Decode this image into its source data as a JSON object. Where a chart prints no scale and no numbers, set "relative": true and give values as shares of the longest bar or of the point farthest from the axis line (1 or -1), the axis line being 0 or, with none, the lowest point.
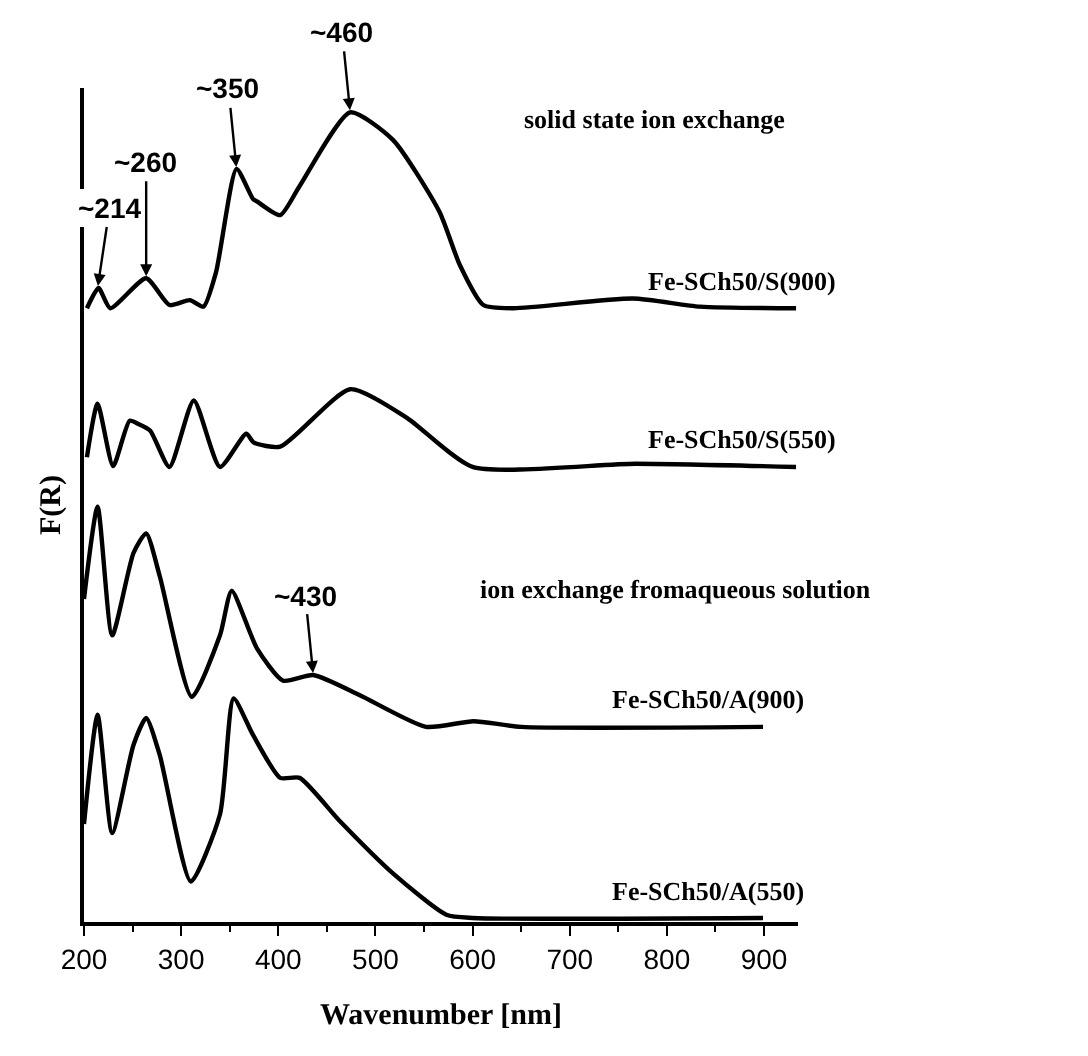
{
  "chart_data": {
    "type": "line",
    "relative": true,
    "xlabel": "Wavenumber [nm]",
    "ylabel": "F(R)",
    "xlim": [
      200,
      935
    ],
    "xticks": [
      200,
      300,
      400,
      500,
      600,
      700,
      800,
      900
    ],
    "legend": false,
    "marker": "none",
    "line_style": "solid",
    "annotations": [
      "solid state ion exchange",
      "ion exchange fromaqueous solution",
      {
        "text": "~214",
        "x": 214,
        "y": 0.783
      },
      {
        "text": "~260",
        "x": 264,
        "y": 0.795
      },
      {
        "text": "~350",
        "x": 357,
        "y": 0.93
      },
      {
        "text": "~460",
        "x": 474,
        "y": 1.0
      },
      {
        "text": "~430",
        "x": 436,
        "y": 0.305
      }
    ],
    "series": [
      {
        "name": "Fe-SCh50/S(900)",
        "color": "#000000",
        "x": [
          203,
          215,
          227,
          264,
          288,
          309,
          323,
          336,
          357,
          374,
          378,
          402,
          422,
          474,
          518,
          566,
          587,
          611,
          642,
          765,
          834,
          933
        ],
        "values": [
          0.758,
          0.783,
          0.758,
          0.795,
          0.762,
          0.768,
          0.76,
          0.803,
          0.93,
          0.893,
          0.89,
          0.873,
          0.909,
          1.0,
          0.966,
          0.877,
          0.811,
          0.762,
          0.758,
          0.77,
          0.76,
          0.758
        ]
      },
      {
        "name": "Fe-SCh50/S(550)",
        "color": "#000000",
        "x": [
          203,
          214,
          230,
          247,
          256,
          268,
          288,
          313,
          340,
          367,
          375,
          402,
          474,
          532,
          600,
          768,
          933
        ],
        "values": [
          0.574,
          0.64,
          0.563,
          0.619,
          0.615,
          0.607,
          0.562,
          0.644,
          0.562,
          0.603,
          0.592,
          0.587,
          0.658,
          0.623,
          0.562,
          0.566,
          0.562
        ]
      },
      {
        "name": "Fe-SCh50/A(900)",
        "color": "#000000",
        "x": [
          200,
          214,
          229,
          251,
          264,
          278,
          311,
          340,
          352,
          378,
          405,
          436,
          484,
          552,
          601,
          650,
          899
        ],
        "values": [
          0.399,
          0.513,
          0.354,
          0.456,
          0.48,
          0.427,
          0.278,
          0.354,
          0.409,
          0.338,
          0.298,
          0.305,
          0.28,
          0.241,
          0.248,
          0.241,
          0.241
        ]
      },
      {
        "name": "Fe-SCh50/A(550)",
        "color": "#000000",
        "x": [
          200,
          214,
          229,
          251,
          264,
          278,
          310,
          340,
          354,
          374,
          402,
          422,
          463,
          518,
          573,
          600,
          899
        ],
        "values": [
          0.121,
          0.256,
          0.11,
          0.219,
          0.252,
          0.206,
          0.05,
          0.133,
          0.276,
          0.231,
          0.178,
          0.178,
          0.125,
          0.06,
          0.009,
          0.005,
          0.005
        ]
      }
    ]
  }
}
